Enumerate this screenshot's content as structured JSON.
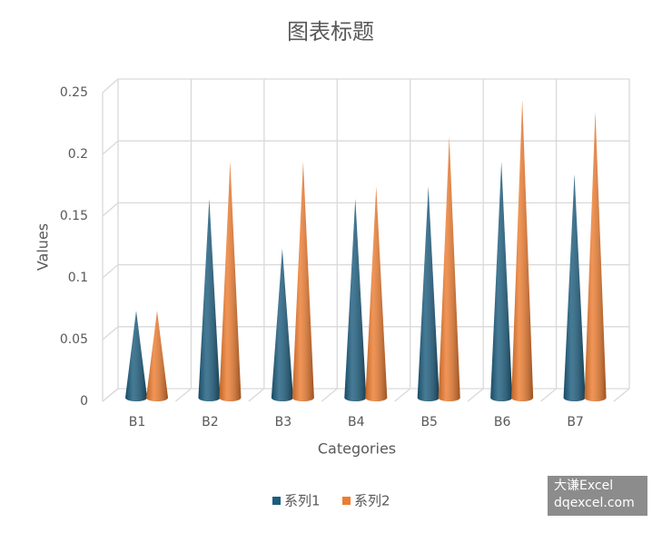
{
  "chart_data": {
    "type": "cone",
    "title": "图表标题",
    "x_label": "Categories",
    "y_label": "Values",
    "categories": [
      "B1",
      "B2",
      "B3",
      "B4",
      "B5",
      "B6",
      "B7"
    ],
    "series": [
      {
        "name": "系列1",
        "color": "#1d5d7e",
        "values": [
          0.07,
          0.16,
          0.12,
          0.16,
          0.17,
          0.19,
          0.18
        ]
      },
      {
        "name": "系列2",
        "color": "#ed7d31",
        "values": [
          0.07,
          0.19,
          0.19,
          0.17,
          0.21,
          0.24,
          0.23
        ]
      }
    ],
    "ylim": [
      0,
      0.25
    ],
    "yticks": [
      0,
      0.05,
      0.1,
      0.15,
      0.2,
      0.25
    ],
    "grid": true,
    "legend": "bottom",
    "annotations": [
      "大谦Excel",
      "dqexcel.com"
    ]
  }
}
